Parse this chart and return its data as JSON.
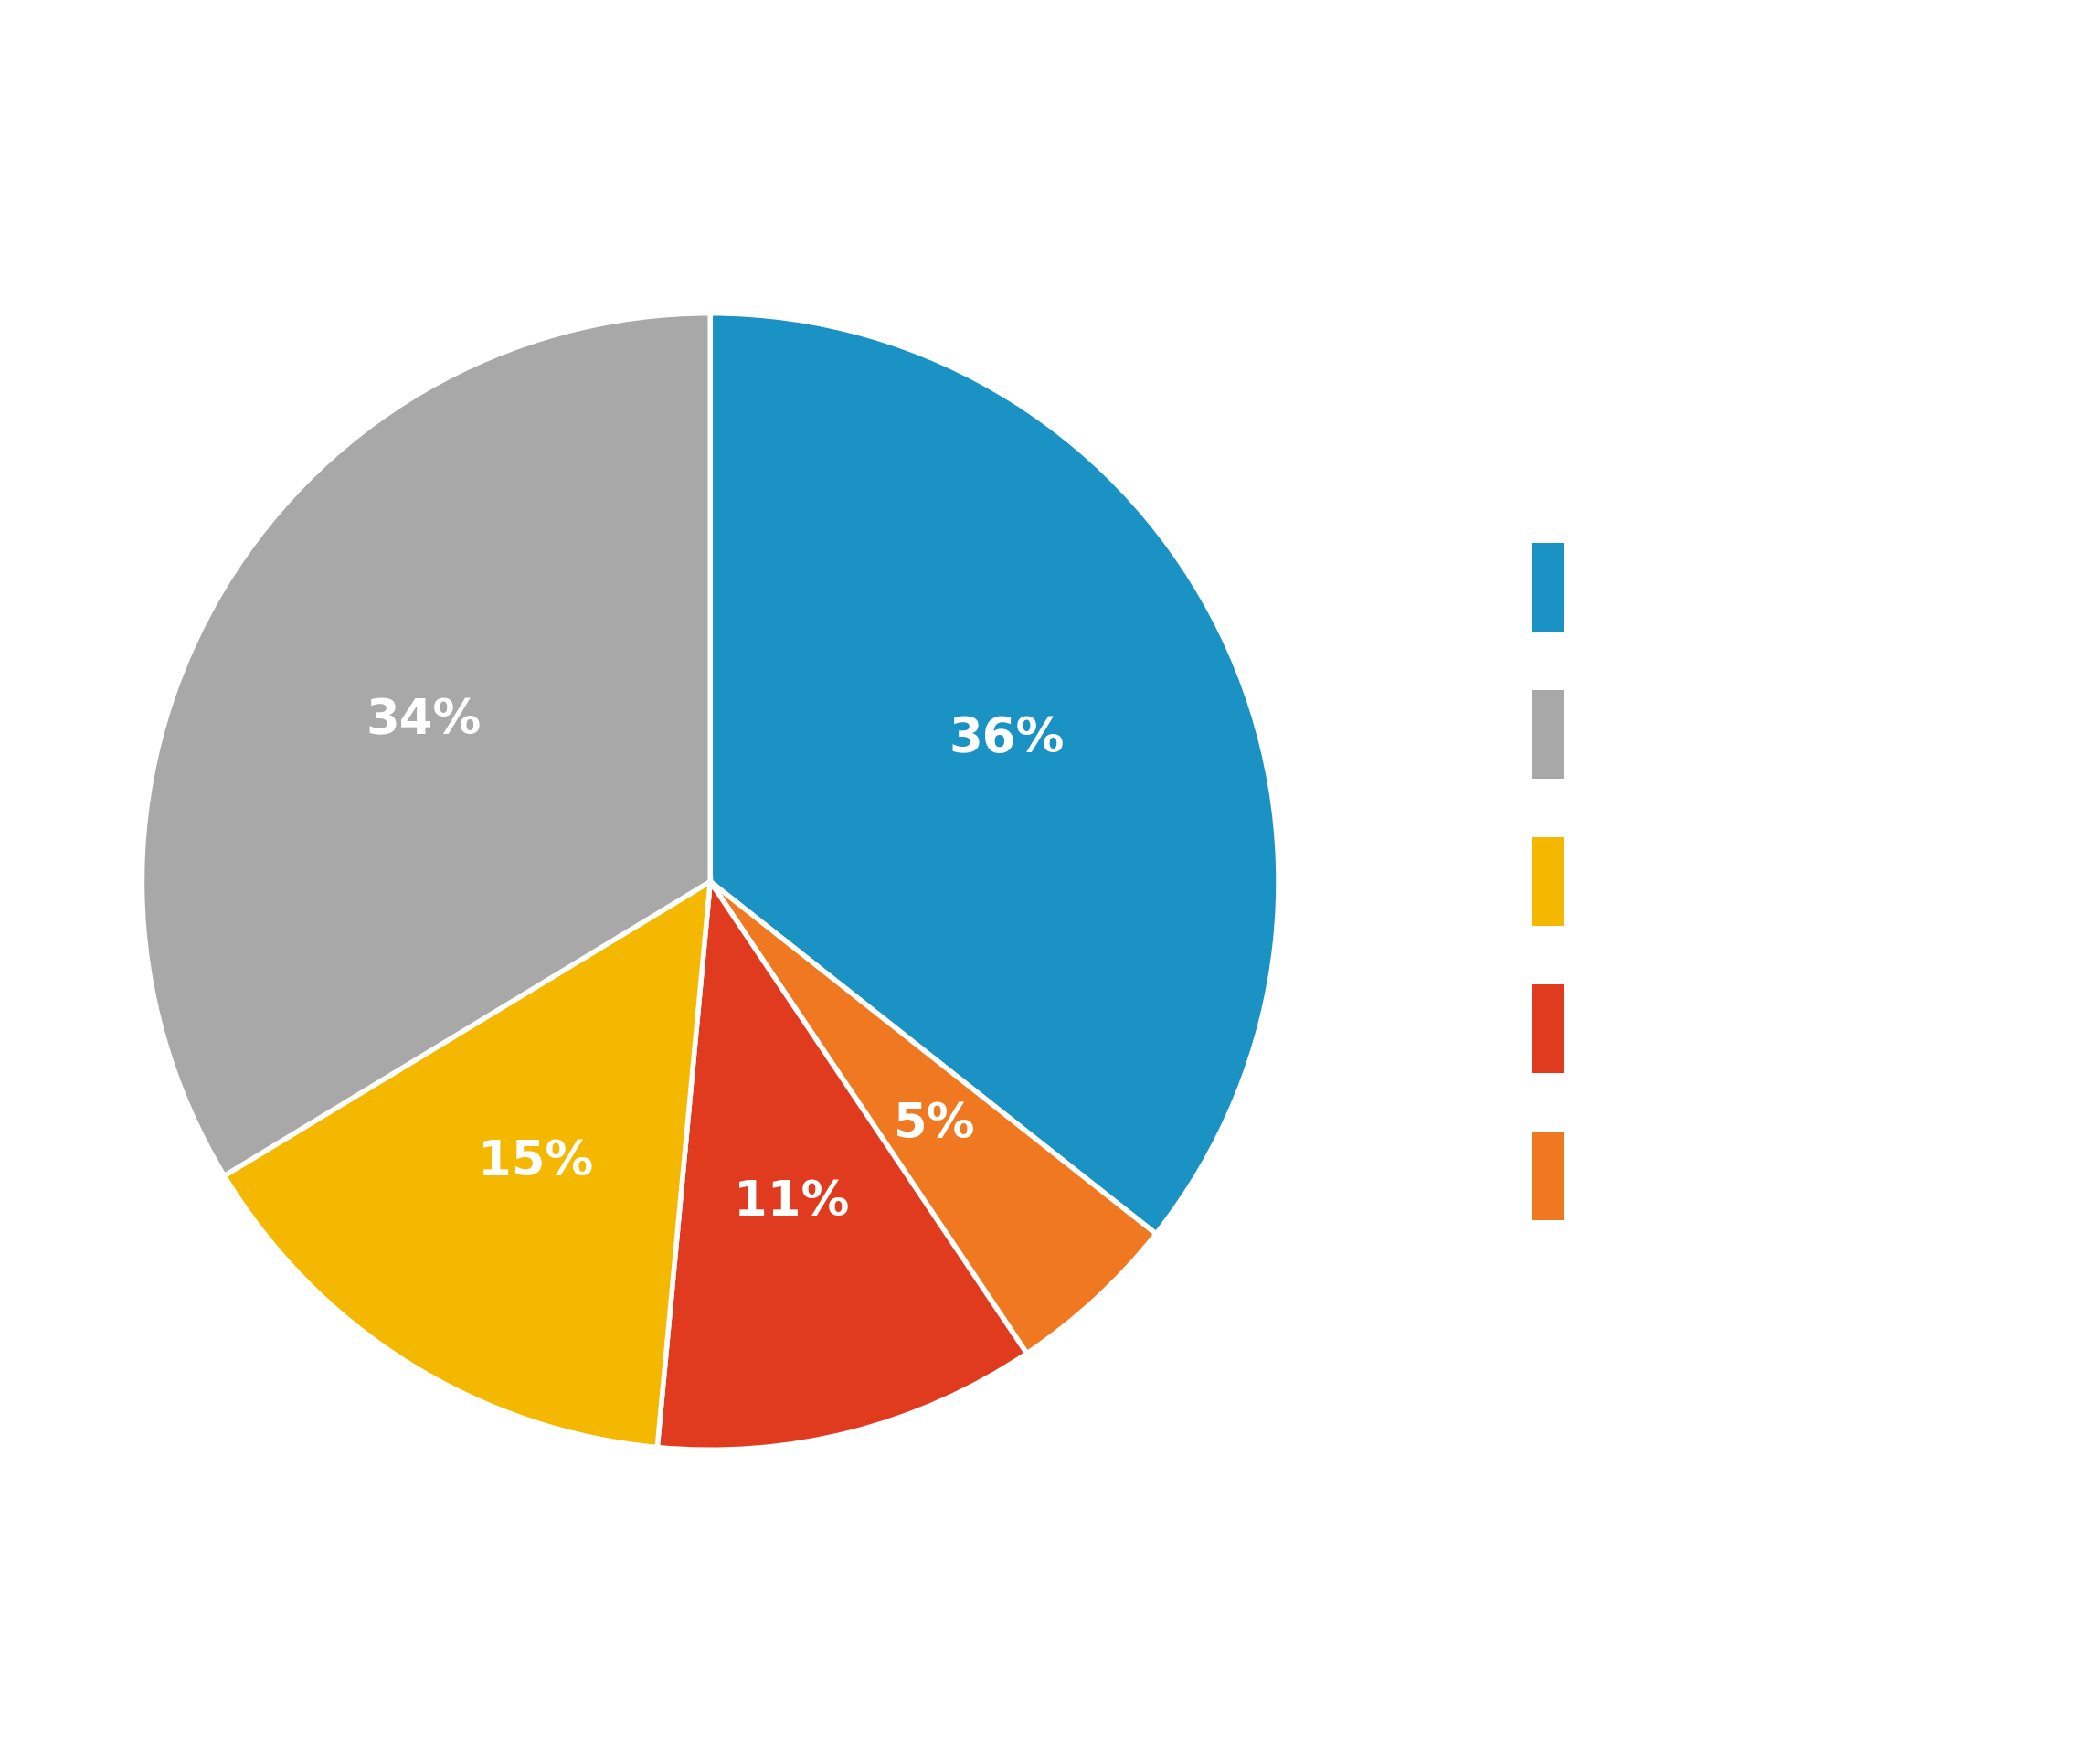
{
  "slices": [
    36,
    5,
    11,
    15,
    34
  ],
  "labels": [
    "36%",
    "5%",
    "11%",
    "15%",
    "34%"
  ],
  "colors": [
    "#1a92c4",
    "#f07820",
    "#e03b1f",
    "#f5b800",
    "#a8a8a8"
  ],
  "legend_colors": [
    "#1a92c4",
    "#a8a8a8",
    "#f5b800",
    "#e03b1f",
    "#f07820"
  ],
  "background_color": "#ffffff",
  "label_fontsize": 38,
  "startangle": 90
}
